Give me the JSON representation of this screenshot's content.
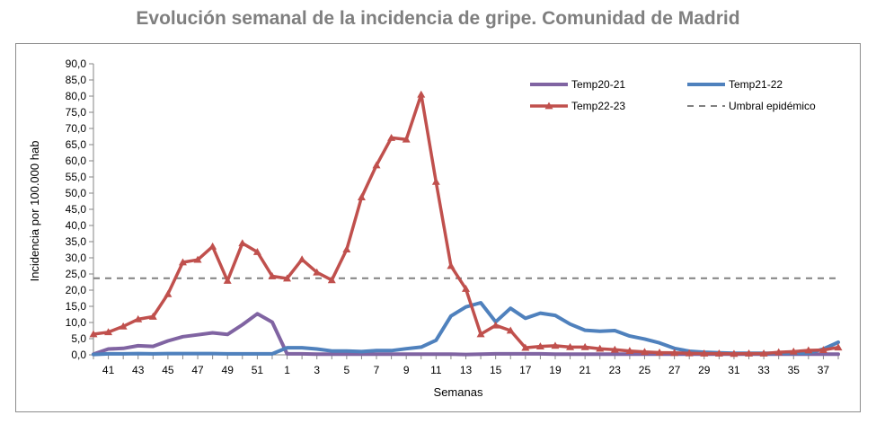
{
  "colors": {
    "title": "#7f7f7f",
    "temp2021": "#8064a2",
    "temp2122": "#4f81bd",
    "temp2223": "#c0504d",
    "threshold": "#808080"
  },
  "chart_data": {
    "type": "line",
    "title": "Evolución semanal de la incidencia de gripe. Comunidad de Madrid",
    "xlabel": "Semanas",
    "ylabel": "Incidencia por 100.000 hab",
    "ylim": [
      0,
      90
    ],
    "y_ticks": [
      "0,0",
      "5,0",
      "10,0",
      "15,0",
      "20,0",
      "25,0",
      "30,0",
      "35,0",
      "40,0",
      "45,0",
      "50,0",
      "55,0",
      "60,0",
      "65,0",
      "70,0",
      "75,0",
      "80,0",
      "85,0",
      "90,0"
    ],
    "x": [
      "40",
      "41",
      "42",
      "43",
      "44",
      "45",
      "46",
      "47",
      "48",
      "49",
      "50",
      "51",
      "52",
      "1",
      "2",
      "3",
      "4",
      "5",
      "6",
      "7",
      "8",
      "9",
      "10",
      "11",
      "12",
      "13",
      "14",
      "15",
      "16",
      "17",
      "18",
      "19",
      "20",
      "21",
      "22",
      "23",
      "24",
      "25",
      "26",
      "27",
      "28",
      "29",
      "30",
      "31",
      "32",
      "33",
      "34",
      "35",
      "36",
      "37",
      "38"
    ],
    "x_tick_labels": [
      "41",
      "43",
      "45",
      "47",
      "49",
      "51",
      "1",
      "3",
      "5",
      "7",
      "9",
      "11",
      "13",
      "15",
      "17",
      "19",
      "21",
      "23",
      "25",
      "27",
      "29",
      "31",
      "33",
      "35",
      "37"
    ],
    "grid": false,
    "legend_position": "top-right",
    "series": [
      {
        "name": "Temp20-21",
        "style": "solid",
        "values": [
          0.2,
          1.8,
          2.0,
          2.8,
          2.6,
          4.3,
          5.6,
          6.2,
          6.8,
          6.3,
          9.3,
          12.7,
          10.1,
          0.3,
          0.3,
          0.2,
          0.2,
          0.2,
          0.2,
          0.2,
          0.2,
          0.2,
          0.2,
          0.2,
          0.2,
          0.1,
          0.2,
          0.3,
          0.3,
          0.3,
          0.3,
          0.2,
          0.2,
          0.2,
          0.2,
          0.2,
          0.2,
          0.2,
          0.2,
          0.2,
          0.2,
          0.2,
          0.2,
          0.2,
          0.2,
          0.2,
          0.2,
          0.2,
          0.2,
          0.2,
          0.2
        ]
      },
      {
        "name": "Temp21-22",
        "style": "solid",
        "values": [
          0.1,
          0.3,
          0.3,
          0.4,
          0.3,
          0.4,
          0.4,
          0.4,
          0.4,
          0.3,
          0.3,
          0.3,
          0.3,
          2.2,
          2.2,
          1.8,
          1.2,
          1.2,
          1.0,
          1.3,
          1.3,
          1.9,
          2.4,
          4.5,
          12.0,
          14.8,
          16.1,
          10.2,
          14.4,
          11.3,
          12.9,
          12.2,
          9.5,
          7.6,
          7.3,
          7.5,
          5.8,
          4.9,
          3.7,
          2.0,
          1.1,
          0.8,
          0.6,
          0.5,
          0.5,
          0.5,
          0.5,
          0.5,
          0.5,
          1.8,
          3.9
        ]
      },
      {
        "name": "Temp22-23",
        "style": "solid-markers",
        "values": [
          6.4,
          7.0,
          8.8,
          11.0,
          11.8,
          18.8,
          28.6,
          29.4,
          33.5,
          22.9,
          34.5,
          31.8,
          24.3,
          23.6,
          29.5,
          25.5,
          23.1,
          32.6,
          48.7,
          58.6,
          67.1,
          66.6,
          80.5,
          53.5,
          27.5,
          20.4,
          6.4,
          9.1,
          7.5,
          2.2,
          2.6,
          2.8,
          2.4,
          2.4,
          1.9,
          1.6,
          1.2,
          0.9,
          0.7,
          0.6,
          0.5,
          0.4,
          0.4,
          0.3,
          0.4,
          0.4,
          0.8,
          1.0,
          1.4,
          1.5,
          2.3
        ]
      },
      {
        "name": "Umbral epidémico",
        "style": "dashed",
        "values": [
          23.7,
          23.7,
          23.7,
          23.7,
          23.7,
          23.7,
          23.7,
          23.7,
          23.7,
          23.7,
          23.7,
          23.7,
          23.7,
          23.7,
          23.7,
          23.7,
          23.7,
          23.7,
          23.7,
          23.7,
          23.7,
          23.7,
          23.7,
          23.7,
          23.7,
          23.7,
          23.7,
          23.7,
          23.7,
          23.7,
          23.7,
          23.7,
          23.7,
          23.7,
          23.7,
          23.7,
          23.7,
          23.7,
          23.7,
          23.7,
          23.7,
          23.7,
          23.7,
          23.7,
          23.7,
          23.7,
          23.7,
          23.7,
          23.7,
          23.7,
          23.7
        ]
      }
    ]
  }
}
